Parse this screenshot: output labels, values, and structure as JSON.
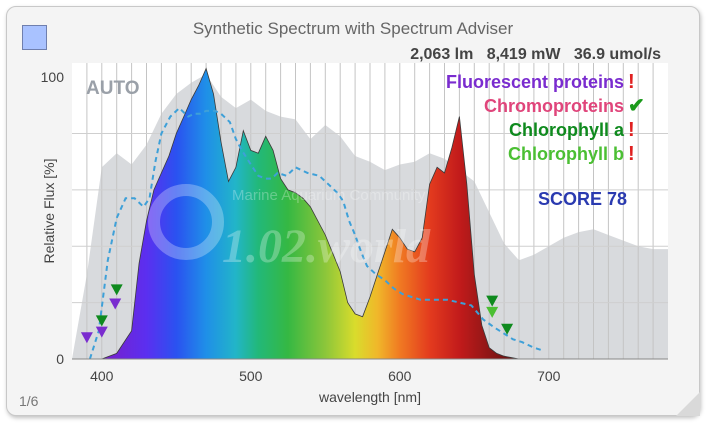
{
  "header": {
    "title": "Synthetic Spectrum with Spectrum Adviser",
    "lumens": "2,063 lm",
    "power": "8,419 mW",
    "ppf": "36.9 umol/s"
  },
  "pager": "1/6",
  "auto_label": "AUTO",
  "watermark": "Marine Aquarium Community",
  "watermark_logo": "1.02.world",
  "score": "SCORE 78",
  "colors": {
    "swatch": "#a9c2ff",
    "fluorescent": "#7a2ccf",
    "chromo": "#e0457b",
    "chlorophyll_a": "#0f8a1e",
    "chlorophyll_b": "#4bbf33",
    "score": "#2a3ab0",
    "alert": "#e02020",
    "ok": "#1a9a1a"
  },
  "adviser": [
    {
      "label": "Fluorescent proteins",
      "status": "!",
      "kind": "fluorescent"
    },
    {
      "label": "Chromoproteins",
      "status": "✔",
      "kind": "chromo"
    },
    {
      "label": "Chlorophyll a",
      "status": "!",
      "kind": "chlorophyll_a"
    },
    {
      "label": "Chlorophyll b",
      "status": "!",
      "kind": "chlorophyll_b"
    }
  ],
  "chart_data": {
    "type": "area",
    "xlabel": "wavelength [nm]",
    "ylabel": "Relative Flux [%]",
    "xlim": [
      380,
      780
    ],
    "ylim": [
      0,
      105
    ],
    "x_ticks": [
      400,
      500,
      600,
      700
    ],
    "y_ticks": [
      0,
      100
    ],
    "grid": true,
    "series": [
      {
        "role": "spectrum",
        "x": [
          400,
          410,
          420,
          425,
          430,
          435,
          440,
          445,
          450,
          455,
          460,
          465,
          470,
          475,
          480,
          485,
          490,
          495,
          500,
          505,
          510,
          515,
          520,
          525,
          530,
          535,
          540,
          550,
          560,
          565,
          570,
          575,
          580,
          585,
          590,
          595,
          600,
          605,
          610,
          615,
          620,
          625,
          630,
          635,
          640,
          645,
          650,
          655,
          660,
          665,
          670,
          680
        ],
        "y": [
          0,
          2,
          10,
          34,
          49,
          60,
          66,
          72,
          80,
          86,
          92,
          97,
          103,
          94,
          77,
          63,
          68,
          81,
          74,
          73,
          79,
          74,
          64,
          60,
          59,
          57,
          54,
          44,
          31,
          20,
          16,
          15,
          22,
          30,
          38,
          46,
          43,
          39,
          38,
          43,
          62,
          68,
          66,
          75,
          86,
          62,
          30,
          12,
          4,
          2,
          1,
          0
        ]
      },
      {
        "role": "reference",
        "x": [
          380,
          390,
          400,
          410,
          420,
          430,
          440,
          450,
          460,
          470,
          480,
          490,
          500,
          510,
          520,
          530,
          540,
          550,
          560,
          570,
          580,
          590,
          600,
          610,
          620,
          630,
          640,
          650,
          660,
          670,
          680,
          690,
          700,
          710,
          720,
          730,
          740,
          750,
          760,
          770,
          780
        ],
        "y": [
          0,
          30,
          68,
          73,
          69,
          76,
          87,
          94,
          98,
          101,
          93,
          89,
          92,
          88,
          86,
          85,
          78,
          83,
          79,
          72,
          70,
          67,
          69,
          70,
          73,
          71,
          67,
          63,
          52,
          41,
          35,
          37,
          40,
          43,
          45,
          46,
          44,
          42,
          40,
          39,
          39
        ]
      },
      {
        "role": "dashed-target",
        "x": [
          392,
          398,
          404,
          410,
          416,
          422,
          428,
          432,
          436,
          440,
          446,
          452,
          458,
          462,
          466,
          470,
          476,
          480,
          486,
          490,
          494,
          500,
          505,
          510,
          514,
          518,
          524,
          530,
          538,
          546,
          552,
          558,
          562,
          566,
          570,
          574,
          578,
          584,
          590,
          596,
          602,
          608,
          614,
          620,
          626,
          632,
          640,
          648,
          656,
          664,
          670,
          676,
          682,
          690,
          696
        ],
        "y": [
          0,
          10,
          35,
          50,
          57,
          57,
          54,
          57,
          70,
          80,
          86,
          89,
          86,
          87,
          87,
          88,
          88,
          87,
          84,
          78,
          74,
          69,
          65,
          64,
          64,
          66,
          65,
          68,
          66,
          65,
          62,
          59,
          56,
          49,
          44,
          38,
          33,
          30,
          28,
          25,
          23,
          22,
          21,
          21,
          21,
          21,
          20,
          19,
          14,
          11,
          9,
          7,
          6,
          4,
          3
        ]
      }
    ],
    "markers": [
      {
        "x": 390,
        "kind": "fluorescent",
        "y": 7
      },
      {
        "x": 400,
        "kind": "fluorescent",
        "y": 9
      },
      {
        "x": 409,
        "kind": "fluorescent",
        "y": 19
      },
      {
        "x": 400,
        "kind": "chlorophyll_a",
        "y": 13
      },
      {
        "x": 410,
        "kind": "chlorophyll_a",
        "y": 24
      },
      {
        "x": 662,
        "kind": "chlorophyll_a",
        "y": 20
      },
      {
        "x": 672,
        "kind": "chlorophyll_a",
        "y": 10
      },
      {
        "x": 662,
        "kind": "chlorophyll_b",
        "y": 16
      }
    ]
  }
}
